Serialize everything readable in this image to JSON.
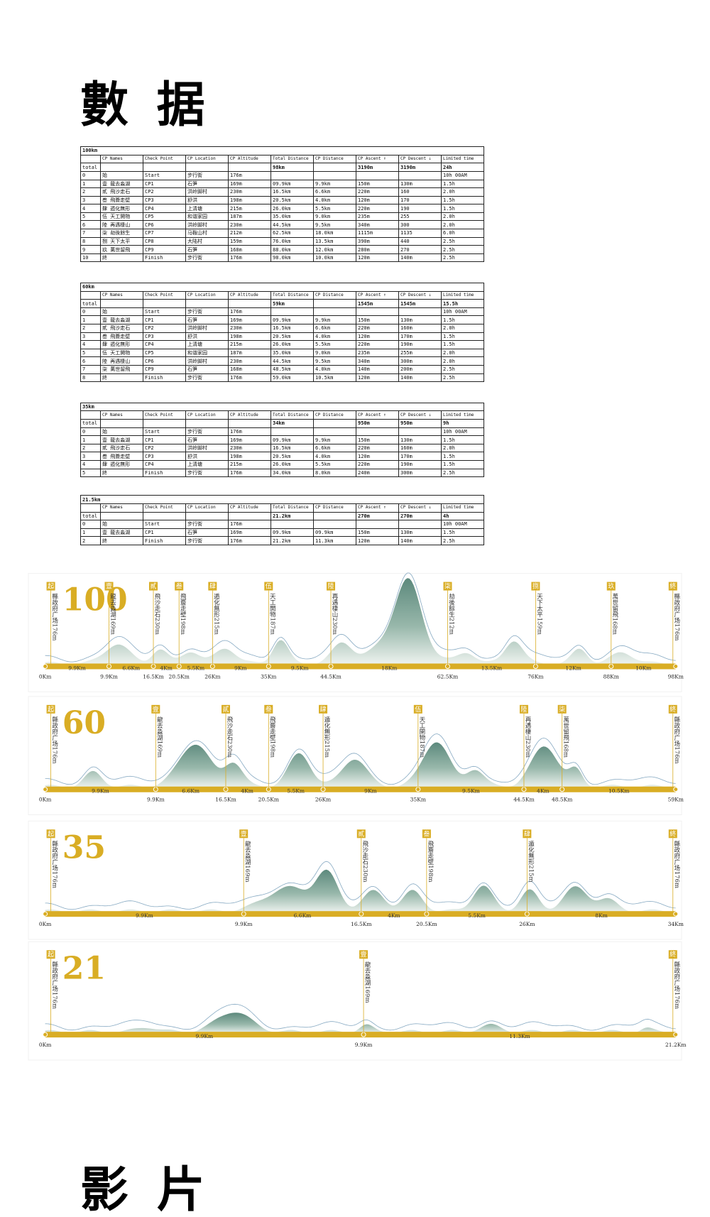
{
  "headings": [
    "數 据",
    "影 片"
  ],
  "table_columns": [
    "CP Names",
    "Check Point",
    "CP Location",
    "CP Altitude",
    "Total Distance",
    "CP Distance",
    "CP Ascent ↑",
    "CP Descent ↓",
    "Limited time"
  ],
  "tables": [
    {
      "title": "100km",
      "total": {
        "label": "total",
        "total_distance": "98km",
        "ascent": "3190m",
        "descent": "3190m",
        "time": "24h"
      },
      "rows": [
        [
          "0",
          "始",
          "Start",
          "步行街",
          "176m",
          null,
          null,
          null,
          null,
          "10h 00AM"
        ],
        [
          "1",
          "壹 龍去淼湖",
          "CP1",
          "石笋",
          "169m",
          "09.9km",
          "9.9km",
          "150m",
          "130m",
          "1.5h"
        ],
        [
          "2",
          "貳 飛沙走石",
          "CP2",
          "洪岭脚村",
          "230m",
          "16.5km",
          "6.6km",
          "220m",
          "160",
          "2.0h"
        ],
        [
          "3",
          "叁 飛簷走壁",
          "CP3",
          "舒洪",
          "198m",
          "20.5km",
          "4.0km",
          "120m",
          "170",
          "1.5h"
        ],
        [
          "4",
          "肆 遁化無形",
          "CP4",
          "上清塘",
          "215m",
          "26.0km",
          "5.5km",
          "220m",
          "190",
          "1.5h"
        ],
        [
          "5",
          "伍 天工開物",
          "CP5",
          "和谐家园",
          "187m",
          "35.0km",
          "9.0km",
          "235m",
          "255",
          "2.0h"
        ],
        [
          "6",
          "陸 再遇棲山",
          "CP6",
          "洪岭脚村",
          "230m",
          "44.5km",
          "9.5km",
          "340m",
          "300",
          "2.0h"
        ],
        [
          "7",
          "柒 劫後餘生",
          "CP7",
          "马鞍山村",
          "212m",
          "62.5km",
          "18.0km",
          "1115m",
          "1135",
          "6.0h"
        ],
        [
          "8",
          "捌 天下太平",
          "CP8",
          "大陆村",
          "159m",
          "76.0km",
          "13.5km",
          "390m",
          "440",
          "2.5h"
        ],
        [
          "9",
          "玖 萬世留飛",
          "CP9",
          "石笋",
          "168m",
          "88.0km",
          "12.0km",
          "280m",
          "270",
          "2.5h"
        ],
        [
          "10",
          "終",
          "Finish",
          "步行街",
          "176m",
          "98.0km",
          "10.0km",
          "120m",
          "140m",
          "2.5h"
        ]
      ]
    },
    {
      "title": "60km",
      "total": {
        "label": "total",
        "total_distance": "59km",
        "ascent": "1545m",
        "descent": "1545m",
        "time": "15.5h"
      },
      "rows": [
        [
          "0",
          "始",
          "Start",
          "步行街",
          "176m",
          null,
          null,
          null,
          null,
          "10h 00AM"
        ],
        [
          "1",
          "壹 龍去淼湖",
          "CP1",
          "石笋",
          "169m",
          "09.9km",
          "9.9km",
          "150m",
          "130m",
          "1.5h"
        ],
        [
          "2",
          "貳 飛沙走石",
          "CP2",
          "洪岭脚村",
          "230m",
          "16.5km",
          "6.6km",
          "220m",
          "160m",
          "2.0h"
        ],
        [
          "3",
          "叁 飛簷走壁",
          "CP3",
          "舒洪",
          "198m",
          "20.5km",
          "4.0km",
          "120m",
          "170m",
          "1.5h"
        ],
        [
          "4",
          "肆 遁化無形",
          "CP4",
          "上清塘",
          "215m",
          "26.0km",
          "5.5km",
          "220m",
          "190m",
          "1.5h"
        ],
        [
          "5",
          "伍 天工開物",
          "CP5",
          "和谐家园",
          "187m",
          "35.0km",
          "9.0km",
          "235m",
          "255m",
          "2.0h"
        ],
        [
          "6",
          "陸 再遇棲山",
          "CP6",
          "洪岭脚村",
          "230m",
          "44.5km",
          "9.5km",
          "340m",
          "300m",
          "2.0h"
        ],
        [
          "7",
          "柒 萬世留飛",
          "CP9",
          "石笋",
          "168m",
          "48.5km",
          "4.0km",
          "140m",
          "200m",
          "2.5h"
        ],
        [
          "8",
          "終",
          "Finish",
          "步行街",
          "176m",
          "59.0km",
          "10.5km",
          "120m",
          "140m",
          "2.5h"
        ]
      ]
    },
    {
      "title": "35km",
      "total": {
        "label": "total",
        "total_distance": "34km",
        "ascent": "950m",
        "descent": "950m",
        "time": "9h"
      },
      "rows": [
        [
          "0",
          "始",
          "Start",
          "步行街",
          "176m",
          null,
          null,
          null,
          null,
          "10h 00AM"
        ],
        [
          "1",
          "壹 龍去淼湖",
          "CP1",
          "石笋",
          "169m",
          "09.9km",
          "9.9km",
          "150m",
          "130m",
          "1.5h"
        ],
        [
          "2",
          "貳 飛沙走石",
          "CP2",
          "洪岭脚村",
          "230m",
          "16.5km",
          "6.6km",
          "220m",
          "160m",
          "2.0h"
        ],
        [
          "3",
          "叁 飛簷走壁",
          "CP3",
          "舒洪",
          "198m",
          "20.5km",
          "4.0km",
          "120m",
          "170m",
          "1.5h"
        ],
        [
          "4",
          "肆 遁化無形",
          "CP4",
          "上清塘",
          "215m",
          "26.0km",
          "5.5km",
          "220m",
          "190m",
          "1.5h"
        ],
        [
          "5",
          "終",
          "Finish",
          "步行街",
          "176m",
          "34.0km",
          "8.0km",
          "240m",
          "300m",
          "2.5h"
        ]
      ]
    },
    {
      "title": "21.5km",
      "total": {
        "label": "total",
        "total_distance": "21.2km",
        "ascent": "270m",
        "descent": "270m",
        "time": "4h"
      },
      "rows": [
        [
          "0",
          "始",
          "Start",
          "步行街",
          "176m",
          null,
          null,
          null,
          null,
          "10h 00AM"
        ],
        [
          "1",
          "壹 龍去淼湖",
          "CP1",
          "石笋",
          "169m",
          "09.9km",
          "09.9km",
          "150m",
          "130m",
          "1.5h"
        ],
        [
          "2",
          "終",
          "Finish",
          "步行街",
          "176m",
          "21.2km",
          "11.3km",
          "120m",
          "140m",
          "2.5h"
        ]
      ]
    }
  ],
  "profiles": [
    {
      "label": "100",
      "checkpoints": [
        {
          "tag": "起",
          "name": "縣政府广场176m"
        },
        {
          "tag": "壹",
          "name": "龍去淼湖169m"
        },
        {
          "tag": "貳",
          "name": "飛沙走石230m"
        },
        {
          "tag": "叁",
          "name": "飛簷走壁198m"
        },
        {
          "tag": "肆",
          "name": "遁化無形215m"
        },
        {
          "tag": "伍",
          "name": "天工開物187m"
        },
        {
          "tag": "陸",
          "name": "再遇棲山230m"
        },
        {
          "tag": "柒",
          "name": "劫後餘生212m"
        },
        {
          "tag": "捌",
          "name": "天下太平159m"
        },
        {
          "tag": "玖",
          "name": "萬世留飛168m"
        },
        {
          "tag": "終",
          "name": "縣政府广场176m"
        }
      ],
      "segments": [
        "9.9Km",
        "6.6Km",
        "4Km",
        "5.5Km",
        "9Km",
        "9.5Km",
        "18Km",
        "13.5Km",
        "12Km",
        "10Km"
      ],
      "axis": [
        "0Km",
        "9.9Km",
        "16.5Km",
        "20.5Km",
        "26Km",
        "35Km",
        "44.5Km",
        "62.5Km",
        "76Km",
        "88Km",
        "98Km"
      ]
    },
    {
      "label": "60",
      "checkpoints": [
        {
          "tag": "起",
          "name": "縣政府广场176m"
        },
        {
          "tag": "壹",
          "name": "龍去淼湖169m"
        },
        {
          "tag": "貳",
          "name": "飛沙走石230m"
        },
        {
          "tag": "叁",
          "name": "飛簷走壁198m"
        },
        {
          "tag": "肆",
          "name": "遁化無形215m"
        },
        {
          "tag": "伍",
          "name": "天工開物187m"
        },
        {
          "tag": "陸",
          "name": "再遇棲山230m"
        },
        {
          "tag": "柒",
          "name": "萬世留飛168m"
        },
        {
          "tag": "終",
          "name": "縣政府广场176m"
        }
      ],
      "segments": [
        "9.9Km",
        "6.6Km",
        "4Km",
        "5.5Km",
        "9Km",
        "9.5Km",
        "4Km",
        "10.5Km"
      ],
      "axis": [
        "0Km",
        "9.9Km",
        "16.5Km",
        "20.5Km",
        "26Km",
        "35Km",
        "44.5Km",
        "48.5Km",
        "59Km"
      ]
    },
    {
      "label": "35",
      "checkpoints": [
        {
          "tag": "起",
          "name": "縣政府广场176m"
        },
        {
          "tag": "壹",
          "name": "龍去淼湖169m"
        },
        {
          "tag": "貳",
          "name": "飛沙走石230m"
        },
        {
          "tag": "叁",
          "name": "飛簷走壁198m"
        },
        {
          "tag": "肆",
          "name": "遁化無形215m"
        },
        {
          "tag": "終",
          "name": "縣政府广场176m"
        }
      ],
      "segments": [
        "9.9Km",
        "6.6Km",
        "4Km",
        "5.5Km",
        "8Km"
      ],
      "axis": [
        "0Km",
        "9.9Km",
        "16.5Km",
        "20.5Km",
        "26Km",
        "34Km"
      ]
    },
    {
      "label": "21",
      "checkpoints": [
        {
          "tag": "起",
          "name": "縣政府广场176m"
        },
        {
          "tag": "壹",
          "name": "龍去淼湖169m"
        },
        {
          "tag": "終",
          "name": "縣政府广场176m"
        }
      ],
      "segments": [
        "9.9Km",
        "11.3Km"
      ],
      "axis": [
        "0Km",
        "9.9Km",
        "21.2Km"
      ]
    }
  ]
}
